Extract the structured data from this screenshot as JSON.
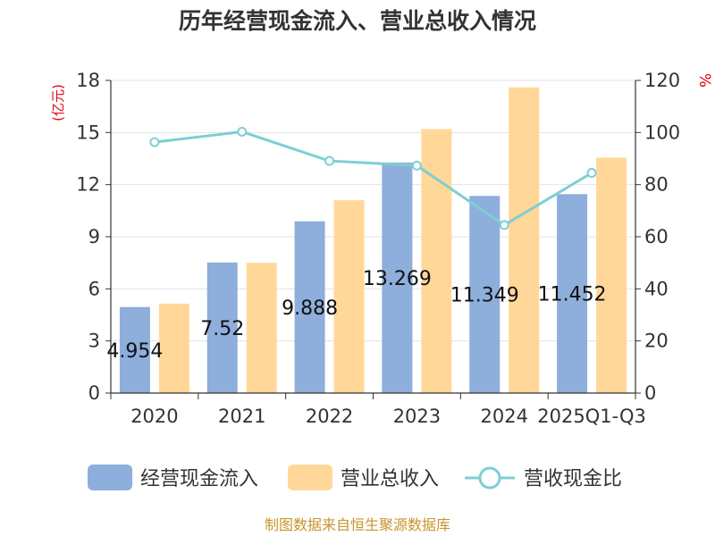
{
  "chart_data": {
    "type": "bar",
    "title": "历年经营现金流入、营业总收入情况",
    "categories": [
      "2020",
      "2021",
      "2022",
      "2023",
      "2024",
      "2025Q1-Q3"
    ],
    "series": [
      {
        "name": "经营现金流入",
        "axis": "left",
        "type": "bar",
        "color": "#8eaedb",
        "values": [
          4.954,
          7.52,
          9.888,
          13.269,
          11.349,
          11.452
        ],
        "labels": [
          "4.954",
          "7.52",
          "9.888",
          "13.269",
          "11.349",
          "11.452"
        ]
      },
      {
        "name": "营业总收入",
        "axis": "left",
        "type": "bar",
        "color": "#ffd899",
        "values": [
          5.15,
          7.5,
          11.1,
          15.2,
          17.6,
          13.55
        ]
      },
      {
        "name": "营收现金比",
        "axis": "right",
        "type": "line",
        "color": "#7dcfd3",
        "values": [
          96.3,
          100.3,
          89.1,
          87.3,
          64.5,
          84.5
        ]
      }
    ],
    "left_axis": {
      "unit": "(亿元)",
      "min": 0,
      "max": 18,
      "ticks": [
        0,
        3,
        6,
        9,
        12,
        15,
        18
      ]
    },
    "right_axis": {
      "unit": "%",
      "min": 0,
      "max": 120,
      "ticks": [
        0,
        20,
        40,
        60,
        80,
        100,
        120
      ]
    },
    "legend_position": "bottom",
    "grid": "horizontal"
  },
  "source_text": "制图数据来自恒生聚源数据库"
}
